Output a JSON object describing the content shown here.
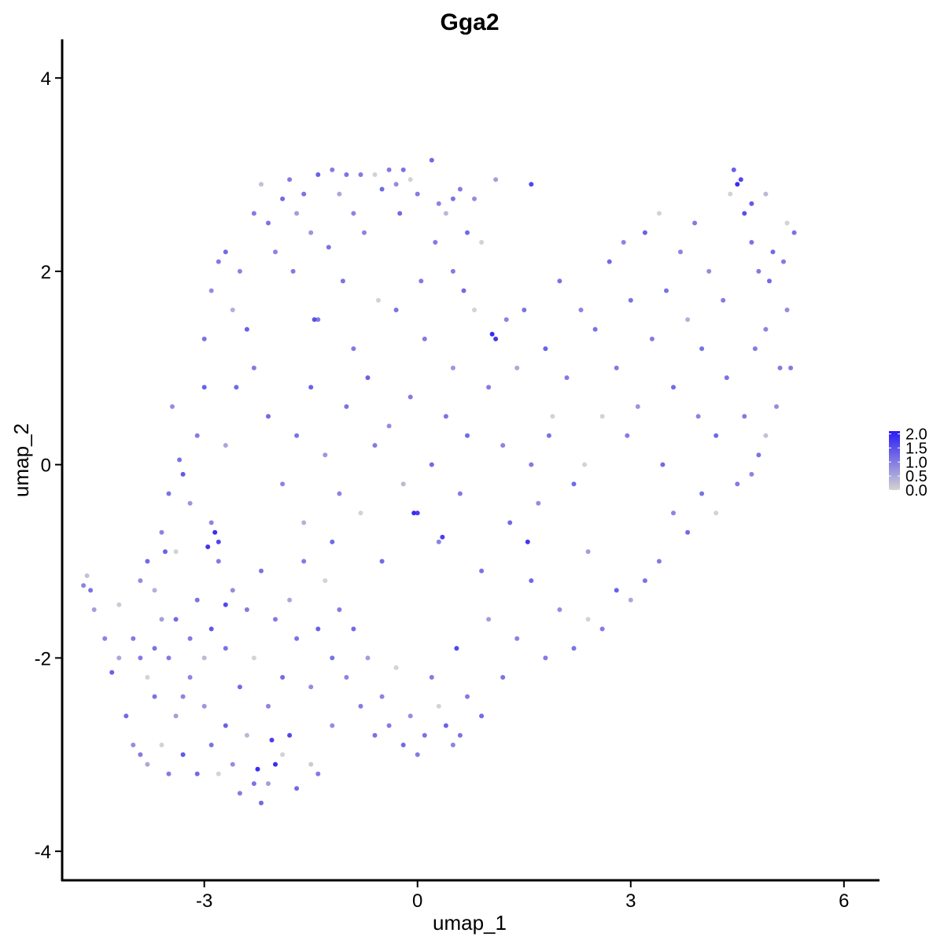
{
  "chart_data": {
    "type": "scatter",
    "title": "Gga2",
    "xlabel": "umap_1",
    "ylabel": "umap_2",
    "xlim": [
      -5.0,
      6.5
    ],
    "ylim": [
      -4.3,
      4.4
    ],
    "x_ticks": [
      -3,
      0,
      3,
      6
    ],
    "x_tick_labels": [
      "-3",
      "0",
      "3",
      "6"
    ],
    "y_ticks": [
      -4,
      -2,
      0,
      2,
      4
    ],
    "y_tick_labels": [
      "-4",
      "-2",
      "0",
      "2",
      "4"
    ],
    "grid": false,
    "legend": {
      "placement": "right",
      "type": "colorbar",
      "ticks": [
        2.0,
        1.5,
        1.0,
        0.5,
        0.0
      ],
      "labels": [
        "2.0",
        "1.5",
        "1.0",
        "0.5",
        "0.0"
      ],
      "low_color": "#d3d3d3",
      "high_color": "#2a1bf5",
      "range": [
        0.0,
        2.1
      ]
    },
    "point_color_low": "#d3d3d3",
    "point_color_high": "#2a1bf5",
    "points_note_removed": true,
    "points": [
      [
        -4.7,
        -1.25,
        0.9
      ],
      [
        -4.6,
        -1.3,
        1.1
      ],
      [
        -4.55,
        -1.5,
        0.6
      ],
      [
        -4.65,
        -1.15,
        0.2
      ],
      [
        -4.4,
        -1.8,
        0.9
      ],
      [
        -4.3,
        -2.15,
        1.3
      ],
      [
        -4.2,
        -1.45,
        0.1
      ],
      [
        -4.1,
        -2.6,
        1.2
      ],
      [
        -4.0,
        -2.9,
        0.8
      ],
      [
        -3.9,
        -3.0,
        1.0
      ],
      [
        -3.8,
        -3.1,
        0.5
      ],
      [
        -3.7,
        -2.4,
        1.1
      ],
      [
        -3.6,
        -2.9,
        0.0
      ],
      [
        -3.5,
        -3.2,
        1.0
      ],
      [
        -3.4,
        -2.6,
        0.6
      ],
      [
        -3.3,
        -3.0,
        1.4
      ],
      [
        -3.2,
        -2.2,
        0.9
      ],
      [
        -3.1,
        -3.2,
        1.2
      ],
      [
        -3.0,
        -2.5,
        0.7
      ],
      [
        -2.9,
        -2.9,
        1.1
      ],
      [
        -2.8,
        -3.2,
        0.0
      ],
      [
        -2.7,
        -2.7,
        1.3
      ],
      [
        -2.6,
        -3.1,
        0.8
      ],
      [
        -2.5,
        -3.4,
        1.0
      ],
      [
        -2.4,
        -2.8,
        0.3
      ],
      [
        -2.3,
        -3.3,
        1.1
      ],
      [
        -2.2,
        -3.5,
        1.2
      ],
      [
        -2.1,
        -3.3,
        0.6
      ],
      [
        -2.0,
        -3.1,
        1.9
      ],
      [
        -1.9,
        -3.0,
        0.0
      ],
      [
        -1.8,
        -2.8,
        1.6
      ],
      [
        -1.7,
        -3.35,
        1.2
      ],
      [
        -1.5,
        -3.1,
        0.1
      ],
      [
        -1.4,
        -3.2,
        1.0
      ],
      [
        -1.2,
        -2.7,
        0.8
      ],
      [
        -4.2,
        -2.0,
        0.5
      ],
      [
        -4.0,
        -1.8,
        1.0
      ],
      [
        -3.9,
        -1.2,
        0.8
      ],
      [
        -3.8,
        -1.0,
        1.2
      ],
      [
        -3.7,
        -1.3,
        0.4
      ],
      [
        -3.6,
        -0.7,
        0.9
      ],
      [
        -3.5,
        -0.3,
        1.1
      ],
      [
        -3.4,
        -0.9,
        0.0
      ],
      [
        -3.3,
        -0.1,
        1.4
      ],
      [
        -3.2,
        -0.4,
        0.7
      ],
      [
        -3.1,
        0.3,
        1.0
      ],
      [
        -3.0,
        0.8,
        1.3
      ],
      [
        -2.9,
        -0.6,
        0.9
      ],
      [
        -2.8,
        -0.8,
        1.6
      ],
      [
        -2.7,
        0.2,
        0.5
      ],
      [
        -3.0,
        1.3,
        1.1
      ],
      [
        -2.9,
        1.8,
        0.8
      ],
      [
        -2.8,
        2.1,
        1.0
      ],
      [
        -2.7,
        2.2,
        1.2
      ],
      [
        -2.6,
        1.6,
        0.4
      ],
      [
        -2.5,
        2.0,
        0.9
      ],
      [
        -2.4,
        1.4,
        1.3
      ],
      [
        -2.3,
        2.6,
        1.0
      ],
      [
        -2.2,
        2.9,
        0.2
      ],
      [
        -2.1,
        2.5,
        1.1
      ],
      [
        -2.0,
        2.2,
        0.9
      ],
      [
        -1.9,
        2.75,
        1.2
      ],
      [
        -1.8,
        2.95,
        1.0
      ],
      [
        -1.7,
        2.6,
        0.6
      ],
      [
        -1.6,
        2.8,
        1.1
      ],
      [
        -1.5,
        2.4,
        0.7
      ],
      [
        -1.4,
        3.0,
        1.3
      ],
      [
        -1.2,
        3.05,
        1.0
      ],
      [
        -1.1,
        2.8,
        0.5
      ],
      [
        -1.0,
        3.0,
        1.1
      ],
      [
        -0.9,
        2.6,
        0.9
      ],
      [
        -0.8,
        3.0,
        1.0
      ],
      [
        -0.6,
        3.0,
        0.0
      ],
      [
        -0.5,
        2.85,
        1.2
      ],
      [
        -0.4,
        3.05,
        1.0
      ],
      [
        -0.3,
        2.9,
        0.8
      ],
      [
        -0.2,
        3.05,
        1.1
      ],
      [
        -0.1,
        2.95,
        0.0
      ],
      [
        0.0,
        2.8,
        1.0
      ],
      [
        0.2,
        3.15,
        1.2
      ],
      [
        0.3,
        2.7,
        0.9
      ],
      [
        0.4,
        2.6,
        0.3
      ],
      [
        0.5,
        2.75,
        1.1
      ],
      [
        0.6,
        2.85,
        1.0
      ],
      [
        0.8,
        2.75,
        0.8
      ],
      [
        1.1,
        2.95,
        0.6
      ],
      [
        1.6,
        2.9,
        1.6
      ],
      [
        0.9,
        2.3,
        0.0
      ],
      [
        0.5,
        2.0,
        1.0
      ],
      [
        0.7,
        2.4,
        1.2
      ],
      [
        -2.3,
        1.0,
        1.0
      ],
      [
        -2.1,
        0.5,
        1.2
      ],
      [
        -1.9,
        -0.2,
        0.9
      ],
      [
        -1.7,
        0.3,
        1.1
      ],
      [
        -1.6,
        -0.6,
        0.4
      ],
      [
        -1.5,
        0.8,
        1.3
      ],
      [
        -1.4,
        1.5,
        1.0
      ],
      [
        -1.3,
        0.1,
        0.7
      ],
      [
        -1.2,
        -0.8,
        1.2
      ],
      [
        -1.1,
        -0.3,
        0.9
      ],
      [
        -1.0,
        0.6,
        1.1
      ],
      [
        -0.9,
        1.2,
        1.0
      ],
      [
        -0.8,
        -0.5,
        0.0
      ],
      [
        -0.7,
        0.9,
        1.3
      ],
      [
        -0.6,
        0.2,
        1.0
      ],
      [
        -0.5,
        -1.0,
        1.2
      ],
      [
        -0.4,
        0.4,
        0.8
      ],
      [
        -0.3,
        1.6,
        1.1
      ],
      [
        -0.2,
        -0.2,
        0.3
      ],
      [
        -0.1,
        0.7,
        1.0
      ],
      [
        0.0,
        -0.5,
        1.7
      ],
      [
        0.1,
        1.3,
        1.0
      ],
      [
        0.2,
        0.0,
        1.2
      ],
      [
        0.3,
        -0.8,
        0.9
      ],
      [
        0.4,
        0.5,
        1.1
      ],
      [
        0.5,
        1.0,
        0.7
      ],
      [
        0.6,
        -0.3,
        1.0
      ],
      [
        0.7,
        0.3,
        1.2
      ],
      [
        0.8,
        1.6,
        0.0
      ],
      [
        0.9,
        -1.1,
        1.1
      ],
      [
        1.0,
        0.8,
        1.0
      ],
      [
        1.1,
        1.3,
        1.8
      ],
      [
        1.2,
        0.2,
        0.9
      ],
      [
        1.3,
        -0.6,
        1.2
      ],
      [
        1.4,
        1.0,
        0.5
      ],
      [
        1.5,
        1.6,
        1.1
      ],
      [
        1.6,
        0.0,
        1.0
      ],
      [
        1.7,
        -0.4,
        0.8
      ],
      [
        1.8,
        1.2,
        1.3
      ],
      [
        1.9,
        0.5,
        0.0
      ],
      [
        2.0,
        1.9,
        1.1
      ],
      [
        2.1,
        0.9,
        1.0
      ],
      [
        2.2,
        -0.2,
        1.2
      ],
      [
        2.3,
        1.6,
        0.9
      ],
      [
        2.4,
        -0.9,
        0.6
      ],
      [
        2.5,
        1.4,
        1.1
      ],
      [
        2.6,
        0.5,
        0.0
      ],
      [
        2.7,
        2.1,
        1.2
      ],
      [
        2.8,
        1.0,
        1.0
      ],
      [
        2.9,
        2.3,
        0.9
      ],
      [
        3.0,
        1.7,
        1.1
      ],
      [
        3.1,
        0.6,
        0.7
      ],
      [
        3.2,
        2.4,
        1.3
      ],
      [
        3.3,
        1.3,
        1.0
      ],
      [
        3.4,
        2.6,
        0.0
      ],
      [
        3.5,
        1.8,
        1.1
      ],
      [
        3.6,
        0.8,
        1.2
      ],
      [
        3.7,
        2.2,
        0.9
      ],
      [
        3.8,
        1.5,
        0.4
      ],
      [
        3.9,
        2.5,
        1.0
      ],
      [
        4.0,
        1.2,
        1.1
      ],
      [
        4.1,
        2.0,
        0.8
      ],
      [
        4.2,
        0.3,
        1.2
      ],
      [
        4.3,
        1.7,
        1.0
      ],
      [
        4.4,
        2.8,
        0.0
      ],
      [
        4.5,
        2.9,
        1.9
      ],
      [
        4.6,
        2.6,
        1.5
      ],
      [
        4.7,
        2.3,
        1.1
      ],
      [
        4.8,
        2.0,
        1.0
      ],
      [
        4.9,
        1.4,
        0.9
      ],
      [
        5.0,
        2.2,
        1.2
      ],
      [
        5.1,
        1.0,
        1.0
      ],
      [
        5.2,
        1.6,
        0.8
      ],
      [
        5.3,
        2.4,
        1.1
      ],
      [
        5.25,
        1.0,
        1.0
      ],
      [
        4.45,
        3.05,
        1.3
      ],
      [
        4.55,
        2.95,
        1.6
      ],
      [
        4.7,
        2.7,
        1.4
      ],
      [
        4.9,
        2.8,
        0.3
      ],
      [
        5.2,
        2.5,
        0.0
      ],
      [
        4.6,
        0.5,
        1.0
      ],
      [
        4.8,
        0.1,
        1.1
      ],
      [
        4.9,
        0.3,
        0.2
      ],
      [
        4.7,
        -0.1,
        0.9
      ],
      [
        4.5,
        -0.2,
        1.0
      ],
      [
        4.2,
        -0.5,
        0.0
      ],
      [
        4.0,
        -0.3,
        1.1
      ],
      [
        3.8,
        -0.7,
        1.2
      ],
      [
        3.6,
        -0.5,
        0.9
      ],
      [
        3.4,
        -1.0,
        1.0
      ],
      [
        3.2,
        -1.2,
        1.1
      ],
      [
        3.0,
        -1.4,
        0.5
      ],
      [
        2.8,
        -1.3,
        1.3
      ],
      [
        2.6,
        -1.7,
        1.0
      ],
      [
        2.4,
        -1.6,
        0.0
      ],
      [
        2.2,
        -1.9,
        1.1
      ],
      [
        2.0,
        -1.5,
        0.8
      ],
      [
        1.8,
        -2.0,
        1.0
      ],
      [
        1.6,
        -1.2,
        1.2
      ],
      [
        1.4,
        -1.8,
        0.9
      ],
      [
        1.2,
        -2.2,
        1.1
      ],
      [
        1.0,
        -1.6,
        0.6
      ],
      [
        0.9,
        -2.6,
        1.2
      ],
      [
        0.7,
        -2.4,
        1.0
      ],
      [
        0.6,
        -2.8,
        1.1
      ],
      [
        0.5,
        -2.9,
        0.9
      ],
      [
        0.4,
        -2.7,
        1.3
      ],
      [
        0.3,
        -2.5,
        0.0
      ],
      [
        0.2,
        -2.2,
        1.0
      ],
      [
        0.1,
        -2.8,
        1.1
      ],
      [
        0.0,
        -3.0,
        1.0
      ],
      [
        -0.1,
        -2.6,
        0.8
      ],
      [
        -0.2,
        -2.9,
        1.2
      ],
      [
        -0.3,
        -2.1,
        0.0
      ],
      [
        -0.4,
        -2.7,
        1.0
      ],
      [
        -0.5,
        -2.4,
        0.9
      ],
      [
        -0.6,
        -2.8,
        1.1
      ],
      [
        -0.7,
        -2.0,
        0.6
      ],
      [
        -0.8,
        -2.5,
        1.0
      ],
      [
        -0.9,
        -1.7,
        1.2
      ],
      [
        -1.0,
        -2.2,
        0.9
      ],
      [
        -1.1,
        -1.5,
        1.0
      ],
      [
        -1.2,
        -2.0,
        1.1
      ],
      [
        -1.3,
        -1.2,
        0.0
      ],
      [
        -1.4,
        -1.7,
        1.3
      ],
      [
        -1.5,
        -2.3,
        0.8
      ],
      [
        -1.6,
        -1.0,
        1.0
      ],
      [
        -1.7,
        -1.8,
        1.1
      ],
      [
        -1.8,
        -1.4,
        0.5
      ],
      [
        -1.9,
        -2.2,
        1.2
      ],
      [
        -2.0,
        -1.6,
        1.0
      ],
      [
        -2.1,
        -2.5,
        0.9
      ],
      [
        -2.2,
        -1.1,
        1.1
      ],
      [
        -2.3,
        -2.0,
        0.0
      ],
      [
        -2.4,
        -1.5,
        1.0
      ],
      [
        -2.5,
        -2.3,
        1.2
      ],
      [
        -2.6,
        -1.3,
        0.8
      ],
      [
        -2.7,
        -1.9,
        1.1
      ],
      [
        -2.8,
        -1.0,
        1.0
      ],
      [
        -2.9,
        -1.7,
        1.4
      ],
      [
        -3.0,
        -2.0,
        0.3
      ],
      [
        -3.1,
        -1.4,
        1.1
      ],
      [
        -3.2,
        -1.8,
        1.0
      ],
      [
        -3.3,
        -2.4,
        0.9
      ],
      [
        -3.4,
        -1.6,
        1.2
      ],
      [
        -3.5,
        -2.0,
        1.0
      ],
      [
        -3.6,
        -1.6,
        0.6
      ],
      [
        -3.7,
        -1.9,
        1.1
      ],
      [
        -3.8,
        -2.2,
        0.0
      ],
      [
        -3.9,
        -2.0,
        1.0
      ],
      [
        -2.95,
        -0.85,
        1.8
      ],
      [
        -2.85,
        -0.7,
        1.9
      ],
      [
        -2.7,
        -1.45,
        1.6
      ],
      [
        -2.05,
        -2.85,
        1.7
      ],
      [
        -2.25,
        -3.15,
        1.9
      ],
      [
        -0.05,
        -0.5,
        1.9
      ],
      [
        0.35,
        -0.75,
        1.7
      ],
      [
        1.55,
        -0.8,
        1.8
      ],
      [
        0.55,
        -1.9,
        1.6
      ],
      [
        1.05,
        1.35,
        1.9
      ],
      [
        -1.45,
        1.5,
        1.5
      ],
      [
        -2.55,
        0.8,
        1.2
      ],
      [
        -3.35,
        0.05,
        1.1
      ],
      [
        -3.55,
        -0.9,
        1.3
      ],
      [
        -3.45,
        0.6,
        0.8
      ],
      [
        -1.75,
        2.0,
        1.0
      ],
      [
        -1.25,
        2.25,
        1.1
      ],
      [
        -0.75,
        2.4,
        0.9
      ],
      [
        -0.25,
        2.6,
        1.2
      ],
      [
        0.25,
        2.3,
        1.0
      ],
      [
        -1.05,
        1.9,
        1.1
      ],
      [
        -0.55,
        1.7,
        0.0
      ],
      [
        0.05,
        1.9,
        1.0
      ],
      [
        0.65,
        1.8,
        1.2
      ],
      [
        1.25,
        1.5,
        0.9
      ],
      [
        1.85,
        0.3,
        1.1
      ],
      [
        2.35,
        0.0,
        0.0
      ],
      [
        2.95,
        0.3,
        1.0
      ],
      [
        3.45,
        0.0,
        1.2
      ],
      [
        3.95,
        0.5,
        0.9
      ],
      [
        4.35,
        0.9,
        1.1
      ],
      [
        4.75,
        1.2,
        1.0
      ],
      [
        5.05,
        0.6,
        0.8
      ],
      [
        4.95,
        1.9,
        1.2
      ],
      [
        5.15,
        2.1,
        1.0
      ]
    ]
  }
}
